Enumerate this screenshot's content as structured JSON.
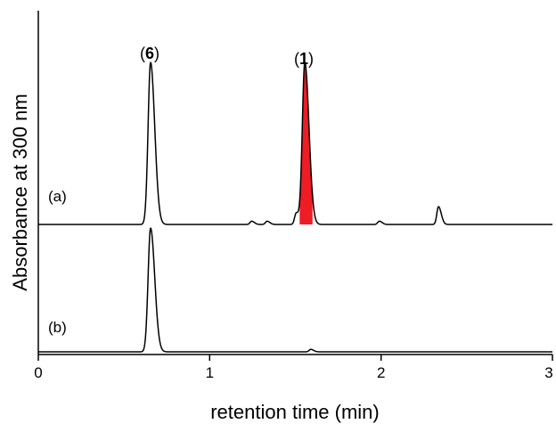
{
  "chart_data": {
    "type": "line",
    "xlabel": "retention time (min)",
    "ylabel": "Absorbance at 300 nm",
    "xlim": [
      0,
      3
    ],
    "x_ticks": [
      "0",
      "1",
      "2",
      "3"
    ],
    "y_ticks": "none",
    "grid": false,
    "legend": "none",
    "series": [
      {
        "name": "(a)",
        "peaks": [
          {
            "x": 0.655,
            "relative_height": 1.0,
            "label": "6"
          },
          {
            "x": 1.245,
            "relative_height": 0.02
          },
          {
            "x": 1.335,
            "relative_height": 0.02
          },
          {
            "x": 1.505,
            "relative_height": 0.07
          },
          {
            "x": 1.555,
            "relative_height": 1.0,
            "label": "1",
            "filled": true,
            "fill_color": "#ee1c25"
          },
          {
            "x": 1.99,
            "relative_height": 0.02
          },
          {
            "x": 2.335,
            "relative_height": 0.11
          }
        ]
      },
      {
        "name": "(b)",
        "peaks": [
          {
            "x": 0.655,
            "relative_height": 1.0
          },
          {
            "x": 1.59,
            "relative_height": 0.02
          }
        ]
      }
    ],
    "peak_labels": [
      {
        "series": "(a)",
        "x": 0.655,
        "open": "(",
        "num": "6",
        "close": ")"
      },
      {
        "series": "(a)",
        "x": 1.555,
        "open": "(",
        "num": "1",
        "close": ")"
      }
    ]
  }
}
